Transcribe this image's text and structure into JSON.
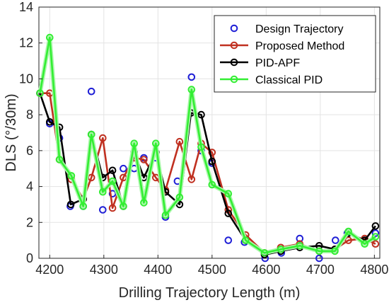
{
  "chart_data": {
    "type": "line",
    "xlabel": "Drilling Trajectory Length (m)",
    "ylabel": "DLS (°/30m)",
    "xlim": [
      4180,
      4810
    ],
    "ylim": [
      0,
      14
    ],
    "xticks": [
      "4200",
      "4300",
      "4400",
      "4500",
      "4600",
      "4700",
      "4800"
    ],
    "yticks": [
      "0",
      "2",
      "4",
      "6",
      "8",
      "10",
      "12",
      "14"
    ],
    "grid": true,
    "legend_position": "top-right",
    "series": [
      {
        "name": "Design Trajectory",
        "style": "markers",
        "color": "#1f1fd6",
        "x": [
          4182,
          4200,
          4218,
          4238,
          4262,
          4277,
          4298,
          4316,
          4336,
          4356,
          4374,
          4396,
          4414,
          4436,
          4462,
          4480,
          4500,
          4530,
          4560,
          4598,
          4628,
          4662,
          4698,
          4728,
          4750,
          4782,
          4802
        ],
        "y": [
          9.2,
          7.5,
          6.7,
          2.9,
          2.9,
          9.3,
          2.7,
          3.6,
          5.0,
          5.0,
          5.6,
          5.6,
          2.3,
          4.3,
          10.1,
          6.0,
          5.3,
          1.0,
          0.9,
          0.0,
          0.3,
          1.1,
          0.0,
          1.0,
          1.4,
          1.0,
          1.4
        ]
      },
      {
        "name": "Proposed Method",
        "style": "line",
        "color": "#c03020",
        "x": [
          4182,
          4200,
          4218,
          4240,
          4262,
          4277,
          4298,
          4316,
          4336,
          4356,
          4374,
          4396,
          4414,
          4440,
          4462,
          4480,
          4500,
          4530,
          4562,
          4597,
          4627,
          4662,
          4698,
          4727,
          4752,
          4782,
          4802
        ],
        "y": [
          9.2,
          9.2,
          5.5,
          4.4,
          3.3,
          4.5,
          6.7,
          2.8,
          4.5,
          5.6,
          5.5,
          4.5,
          3.8,
          6.5,
          4.4,
          6.4,
          5.9,
          2.7,
          1.3,
          0.3,
          0.6,
          0.8,
          0.4,
          0.5,
          1.0,
          1.1,
          0.8
        ]
      },
      {
        "name": "PID-APF",
        "style": "line",
        "color": "#000000",
        "x": [
          4182,
          4200,
          4218,
          4239,
          4262,
          4277,
          4298,
          4316,
          4336,
          4356,
          4374,
          4396,
          4414,
          4440,
          4461,
          4480,
          4500,
          4530,
          4562,
          4597,
          4627,
          4662,
          4698,
          4727,
          4752,
          4782,
          4802
        ],
        "y": [
          9.2,
          7.6,
          7.3,
          3.0,
          3.3,
          6.9,
          4.5,
          4.9,
          2.9,
          5.9,
          4.5,
          5.9,
          3.7,
          3.0,
          8.1,
          8.0,
          5.4,
          2.5,
          1.0,
          0.2,
          0.4,
          0.6,
          0.7,
          0.5,
          1.4,
          1.0,
          1.8
        ]
      },
      {
        "name": "Classical PID",
        "style": "line",
        "color": "#33ee33",
        "x": [
          4182,
          4200,
          4218,
          4240,
          4262,
          4277,
          4298,
          4316,
          4336,
          4356,
          4374,
          4396,
          4414,
          4440,
          4462,
          4480,
          4500,
          4530,
          4562,
          4597,
          4627,
          4662,
          4698,
          4727,
          4752,
          4782,
          4802
        ],
        "y": [
          9.2,
          12.3,
          5.5,
          4.6,
          2.9,
          6.9,
          3.7,
          4.3,
          2.9,
          6.4,
          3.1,
          6.4,
          2.4,
          3.4,
          9.4,
          6.2,
          4.1,
          3.6,
          1.0,
          0.3,
          0.5,
          0.7,
          0.4,
          0.4,
          1.5,
          0.8,
          1.2
        ]
      }
    ]
  }
}
